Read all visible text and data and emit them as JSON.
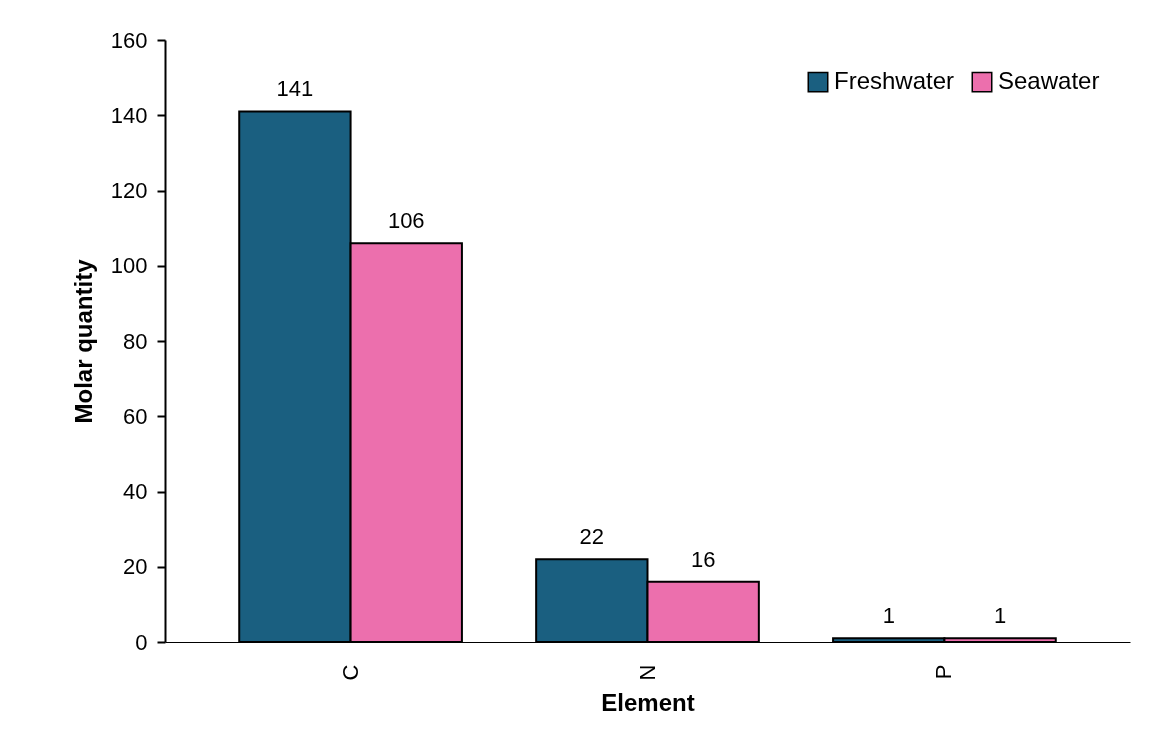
{
  "chart_data": {
    "type": "bar",
    "xlabel": "Element",
    "ylabel": "Molar quantity",
    "categories": [
      "C",
      "N",
      "P"
    ],
    "series": [
      {
        "name": "Freshwater",
        "color": "#1a5f80",
        "values": [
          141,
          22,
          1
        ]
      },
      {
        "name": "Seawater",
        "color": "#ec6fad",
        "values": [
          106,
          16,
          1
        ]
      }
    ],
    "ylim": [
      0,
      160
    ],
    "yticks": [
      0,
      20,
      40,
      60,
      80,
      100,
      120,
      140,
      160
    ],
    "grid": false,
    "legend": "top right",
    "data_labels": true
  }
}
